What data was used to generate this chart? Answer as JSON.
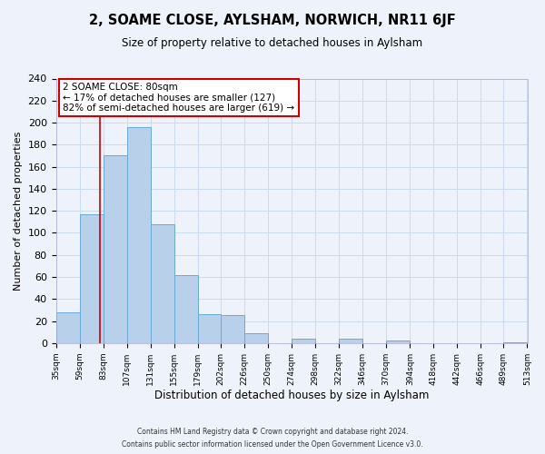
{
  "title": "2, SOAME CLOSE, AYLSHAM, NORWICH, NR11 6JF",
  "subtitle": "Size of property relative to detached houses in Aylsham",
  "xlabel": "Distribution of detached houses by size in Aylsham",
  "ylabel": "Number of detached properties",
  "bar_color": "#b8d0ea",
  "bar_edge_color": "#6aaad4",
  "grid_color": "#ccd9ee",
  "background_color": "#eef2fb",
  "annotation_box_color": "#ffffff",
  "annotation_box_edge": "#cc0000",
  "red_line_color": "#cc0000",
  "bin_edges": [
    35,
    59,
    83,
    107,
    131,
    155,
    179,
    202,
    226,
    250,
    274,
    298,
    322,
    346,
    370,
    394,
    418,
    442,
    466,
    489,
    513
  ],
  "counts": [
    28,
    117,
    170,
    196,
    108,
    62,
    26,
    25,
    9,
    0,
    4,
    0,
    4,
    0,
    2,
    0,
    0,
    0,
    0,
    1
  ],
  "property_size": 80,
  "annotation_line1": "2 SOAME CLOSE: 80sqm",
  "annotation_line2": "← 17% of detached houses are smaller (127)",
  "annotation_line3": "82% of semi-detached houses are larger (619) →",
  "footer1": "Contains HM Land Registry data © Crown copyright and database right 2024.",
  "footer2": "Contains public sector information licensed under the Open Government Licence v3.0.",
  "ylim": [
    0,
    240
  ],
  "yticks": [
    0,
    20,
    40,
    60,
    80,
    100,
    120,
    140,
    160,
    180,
    200,
    220,
    240
  ],
  "tick_labels": [
    "35sqm",
    "59sqm",
    "83sqm",
    "107sqm",
    "131sqm",
    "155sqm",
    "179sqm",
    "202sqm",
    "226sqm",
    "250sqm",
    "274sqm",
    "298sqm",
    "322sqm",
    "346sqm",
    "370sqm",
    "394sqm",
    "418sqm",
    "442sqm",
    "466sqm",
    "489sqm",
    "513sqm"
  ],
  "title_fontsize": 10.5,
  "subtitle_fontsize": 8.5,
  "ylabel_fontsize": 8,
  "xlabel_fontsize": 8.5,
  "ytick_fontsize": 8,
  "xtick_fontsize": 6.5,
  "annotation_fontsize": 7.5,
  "footer_fontsize": 5.5
}
